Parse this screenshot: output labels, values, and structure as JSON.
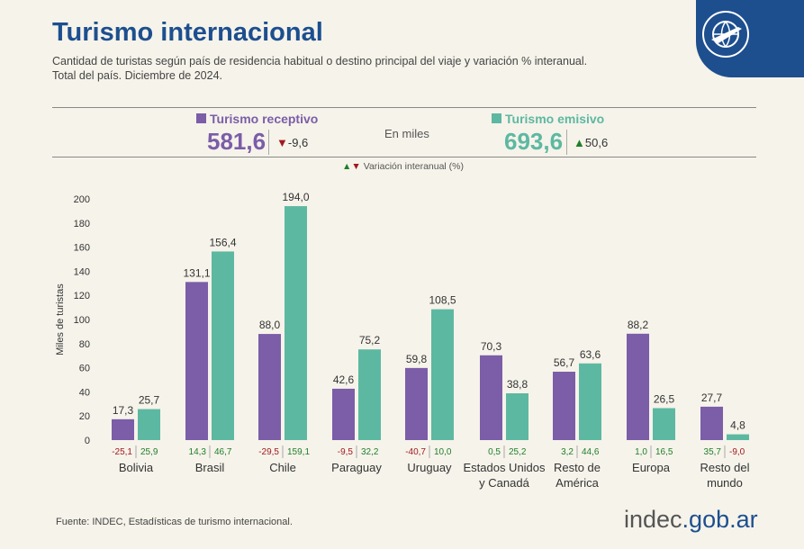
{
  "header": {
    "title": "Turismo internacional",
    "subtitle1": "Cantidad de turistas según país de residencia habitual o destino principal del viaje y variación % interanual.",
    "subtitle2": "Total del país. Diciembre de 2024."
  },
  "summary": {
    "receptivo_label": "Turismo receptivo",
    "receptivo_value": "581,6",
    "receptivo_var": "-9,6",
    "unit": "En miles",
    "emisivo_label": "Turismo emisivo",
    "emisivo_value": "693,6",
    "emisivo_var": "50,6",
    "var_legend": "Variación interanual (%)"
  },
  "colors": {
    "receptivo": "#7b5da8",
    "emisivo": "#5db8a2",
    "title": "#1d4f8f",
    "neg": "#a0191e",
    "pos": "#1f7f2a"
  },
  "chart_data": {
    "type": "bar",
    "ylabel": "Miles de turistas",
    "ylim": [
      0,
      200
    ],
    "yticks": [
      0,
      20,
      40,
      60,
      80,
      100,
      120,
      140,
      160,
      180,
      200
    ],
    "categories": [
      [
        "Bolivia"
      ],
      [
        "Brasil"
      ],
      [
        "Chile"
      ],
      [
        "Paraguay"
      ],
      [
        "Uruguay"
      ],
      [
        "Estados Unidos",
        "y Canadá"
      ],
      [
        "Resto de",
        "América"
      ],
      [
        "Europa"
      ],
      [
        "Resto del",
        "mundo"
      ]
    ],
    "series": [
      {
        "name": "Turismo receptivo",
        "values": [
          17.3,
          131.1,
          88.0,
          42.6,
          59.8,
          70.3,
          56.7,
          88.2,
          27.7
        ],
        "labels": [
          "17,3",
          "131,1",
          "88,0",
          "42,6",
          "59,8",
          "70,3",
          "56,7",
          "88,2",
          "27,7"
        ],
        "var": [
          "-25,1",
          "14,3",
          "-29,5",
          "-9,5",
          "-40,7",
          "0,5",
          "3,2",
          "1,0",
          "35,7"
        ]
      },
      {
        "name": "Turismo emisivo",
        "values": [
          25.7,
          156.4,
          194.0,
          75.2,
          108.5,
          38.8,
          63.6,
          26.5,
          4.8
        ],
        "labels": [
          "25,7",
          "156,4",
          "194,0",
          "75,2",
          "108,5",
          "38,8",
          "63,6",
          "26,5",
          "4,8"
        ],
        "var": [
          "25,9",
          "46,7",
          "159,1",
          "32,2",
          "10,0",
          "25,2",
          "44,6",
          "16,5",
          "-9,0"
        ]
      }
    ]
  },
  "footer": {
    "source": "Fuente: INDEC, Estadísticas de turismo internacional.",
    "logo_a": "indec",
    "logo_b": ".gob.ar"
  }
}
